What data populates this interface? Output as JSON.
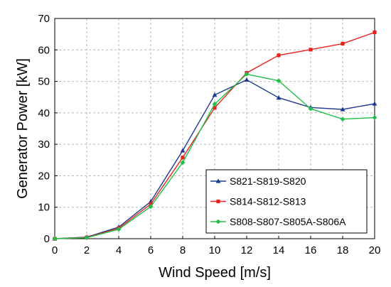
{
  "chart_data": {
    "type": "line",
    "xlabel": "Wind Speed [m/s]",
    "ylabel": "Generator Power [kW]",
    "xlim": [
      0,
      20
    ],
    "ylim": [
      0,
      70
    ],
    "x_ticks": [
      0,
      2,
      4,
      6,
      8,
      10,
      12,
      14,
      16,
      18,
      20
    ],
    "y_ticks": [
      0,
      10,
      20,
      30,
      40,
      50,
      60,
      70
    ],
    "grid": true,
    "legend_position": "bottom-right",
    "x": [
      0,
      2,
      4,
      6,
      8,
      10,
      12,
      14,
      16,
      18,
      20
    ],
    "series": [
      {
        "name": "S821-S819-S820",
        "color": "#1f3a8f",
        "marker": "triangle",
        "values": [
          0,
          0.5,
          3.7,
          11.8,
          28.0,
          45.7,
          50.5,
          44.8,
          41.7,
          41.1,
          42.9
        ]
      },
      {
        "name": "S814-S812-S813",
        "color": "#e8231e",
        "marker": "square",
        "values": [
          0,
          0.4,
          3.3,
          11.0,
          25.8,
          41.6,
          52.7,
          58.3,
          60.1,
          62.0,
          65.6
        ]
      },
      {
        "name": "S808-S807-S805A-S806A",
        "color": "#22bf4b",
        "marker": "diamond",
        "values": [
          0,
          0.3,
          3.0,
          10.2,
          24.2,
          42.8,
          52.3,
          50.2,
          41.3,
          38.0,
          38.5
        ]
      }
    ]
  }
}
